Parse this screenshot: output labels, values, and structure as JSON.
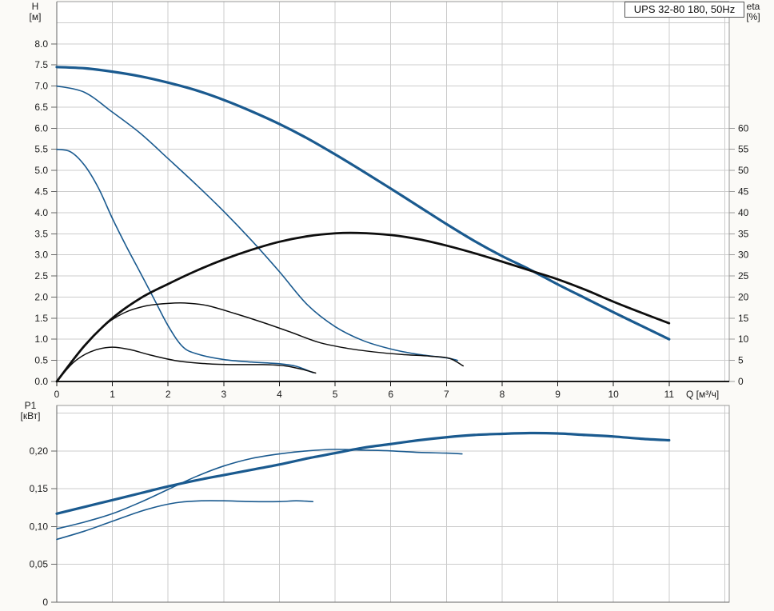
{
  "page": {
    "background": "#fbfaf7",
    "plot_background": "#ffffff"
  },
  "colors": {
    "curve_blue": "#1a5a8f",
    "curve_black": "#0e0e0e",
    "grid": "#cccccc",
    "border": "#999999",
    "axis_left": "#666666",
    "axis_bottom_dark": "#1a1a1a",
    "text": "#1a1a1a"
  },
  "chart_data": [
    {
      "type": "line",
      "title": "UPS 32-80 180, 50Hz",
      "xlabel": "Q [м³/ч]",
      "ylabel_left_lines": [
        "H",
        "[м]"
      ],
      "ylabel_right_lines": [
        "eta",
        "[%]"
      ],
      "x_range": [
        0,
        12.08
      ],
      "y_left_range": [
        0,
        9
      ],
      "y_right_range": [
        0,
        90
      ],
      "x_tick_labels": [
        "0",
        "1",
        "2",
        "3",
        "4",
        "5",
        "6",
        "7",
        "8",
        "9",
        "10",
        "11"
      ],
      "y_left_tick_labels": [
        "0.0",
        "0.5",
        "1.0",
        "1.5",
        "2.0",
        "2.5",
        "3.0",
        "3.5",
        "4.0",
        "4.5",
        "5.0",
        "5.5",
        "6.0",
        "6.5",
        "7.0",
        "7.5",
        "8.0"
      ],
      "y_right_tick_labels": [
        "0",
        "5",
        "10",
        "15",
        "20",
        "25",
        "30",
        "35",
        "40",
        "45",
        "50",
        "55",
        "60"
      ],
      "grid": {
        "x_step": 1,
        "y_left_step": 0.5,
        "y_grid_max": 8.5,
        "x_grid_max": 12
      },
      "legend": "none",
      "series": [
        {
          "name": "H-Q curve speed 3 (max)",
          "y_axis": "left",
          "color": "#1a5a8f",
          "width": 3.2,
          "points": [
            [
              0,
              7.45
            ],
            [
              0.5,
              7.42
            ],
            [
              1,
              7.34
            ],
            [
              1.5,
              7.23
            ],
            [
              2,
              7.08
            ],
            [
              2.5,
              6.9
            ],
            [
              3,
              6.67
            ],
            [
              3.5,
              6.4
            ],
            [
              4,
              6.1
            ],
            [
              4.5,
              5.76
            ],
            [
              5,
              5.38
            ],
            [
              5.5,
              4.98
            ],
            [
              6,
              4.57
            ],
            [
              6.5,
              4.15
            ],
            [
              7,
              3.73
            ],
            [
              7.5,
              3.33
            ],
            [
              8,
              2.97
            ],
            [
              8.5,
              2.65
            ],
            [
              9,
              2.3
            ],
            [
              9.5,
              1.97
            ],
            [
              10,
              1.64
            ],
            [
              10.5,
              1.32
            ],
            [
              11,
              1.0
            ]
          ]
        },
        {
          "name": "H-Q curve speed 2",
          "y_axis": "left",
          "color": "#1a5a8f",
          "width": 1.6,
          "points": [
            [
              0,
              7.0
            ],
            [
              0.5,
              6.85
            ],
            [
              1,
              6.38
            ],
            [
              1.5,
              5.88
            ],
            [
              2,
              5.28
            ],
            [
              2.5,
              4.67
            ],
            [
              3,
              4.03
            ],
            [
              3.5,
              3.34
            ],
            [
              4,
              2.6
            ],
            [
              4.5,
              1.82
            ],
            [
              5,
              1.3
            ],
            [
              5.5,
              0.97
            ],
            [
              6,
              0.77
            ],
            [
              6.5,
              0.64
            ],
            [
              7,
              0.56
            ],
            [
              7.2,
              0.5
            ]
          ]
        },
        {
          "name": "H-Q curve speed 1",
          "y_axis": "left",
          "color": "#1a5a8f",
          "width": 1.6,
          "points": [
            [
              0,
              5.5
            ],
            [
              0.25,
              5.44
            ],
            [
              0.5,
              5.12
            ],
            [
              0.75,
              4.58
            ],
            [
              1,
              3.86
            ],
            [
              1.25,
              3.2
            ],
            [
              1.5,
              2.58
            ],
            [
              1.75,
              1.95
            ],
            [
              2,
              1.32
            ],
            [
              2.25,
              0.84
            ],
            [
              2.5,
              0.66
            ],
            [
              3,
              0.52
            ],
            [
              3.5,
              0.46
            ],
            [
              4,
              0.42
            ],
            [
              4.3,
              0.36
            ],
            [
              4.6,
              0.21
            ]
          ]
        },
        {
          "name": "eta curve speed 3 (max)",
          "y_axis": "right",
          "color": "#0e0e0e",
          "width": 2.8,
          "points": [
            [
              0,
              0
            ],
            [
              0.5,
              8.5
            ],
            [
              1,
              15
            ],
            [
              1.5,
              19.7
            ],
            [
              2,
              23.1
            ],
            [
              2.5,
              26.2
            ],
            [
              3,
              28.9
            ],
            [
              3.5,
              31.2
            ],
            [
              4,
              33.1
            ],
            [
              4.5,
              34.4
            ],
            [
              5,
              35.1
            ],
            [
              5.4,
              35.2
            ],
            [
              6,
              34.7
            ],
            [
              6.5,
              33.7
            ],
            [
              7,
              32.2
            ],
            [
              7.5,
              30.4
            ],
            [
              8,
              28.4
            ],
            [
              8.5,
              26.3
            ],
            [
              9,
              24.2
            ],
            [
              9.5,
              21.7
            ],
            [
              10,
              18.9
            ],
            [
              10.5,
              16.3
            ],
            [
              11,
              13.8
            ]
          ]
        },
        {
          "name": "eta curve speed 2",
          "y_axis": "right",
          "color": "#0e0e0e",
          "width": 1.5,
          "points": [
            [
              0,
              0
            ],
            [
              0.4,
              7
            ],
            [
              0.8,
              12.7
            ],
            [
              1.2,
              16.2
            ],
            [
              1.6,
              17.9
            ],
            [
              2,
              18.5
            ],
            [
              2.3,
              18.6
            ],
            [
              2.7,
              18
            ],
            [
              3.2,
              16.1
            ],
            [
              3.7,
              14
            ],
            [
              4.2,
              11.7
            ],
            [
              4.7,
              9.3
            ],
            [
              5.2,
              7.9
            ],
            [
              5.7,
              7.0
            ],
            [
              6.2,
              6.4
            ],
            [
              6.7,
              6.0
            ],
            [
              7.05,
              5.5
            ],
            [
              7.3,
              3.7
            ]
          ]
        },
        {
          "name": "eta curve speed 1",
          "y_axis": "right",
          "color": "#0e0e0e",
          "width": 1.5,
          "points": [
            [
              0,
              0
            ],
            [
              0.3,
              4.5
            ],
            [
              0.6,
              7.0
            ],
            [
              0.95,
              8.1
            ],
            [
              1.3,
              7.6
            ],
            [
              1.7,
              6.2
            ],
            [
              2.2,
              4.8
            ],
            [
              2.7,
              4.2
            ],
            [
              3.2,
              4.0
            ],
            [
              3.7,
              4.0
            ],
            [
              4.1,
              3.7
            ],
            [
              4.4,
              2.9
            ],
            [
              4.65,
              2.0
            ]
          ]
        }
      ]
    },
    {
      "type": "line",
      "title": "",
      "xlabel": "",
      "ylabel_lines": [
        "P1",
        "[кВт]"
      ],
      "x_range": [
        0,
        12.08
      ],
      "y_range": [
        0,
        0.26
      ],
      "y_tick_labels": [
        "0",
        "0,05",
        "0,10",
        "0,15",
        "0,20"
      ],
      "y_tick_values": [
        0,
        0.05,
        0.1,
        0.15,
        0.2
      ],
      "grid": {
        "x_step": 1,
        "y_step": 0.05,
        "y_grid_max": 0.25,
        "x_grid_max": 12
      },
      "legend": "none",
      "series": [
        {
          "name": "P1 curve speed 3 (max)",
          "color": "#1a5a8f",
          "width": 3.2,
          "points": [
            [
              0,
              0.117
            ],
            [
              0.5,
              0.126
            ],
            [
              1,
              0.135
            ],
            [
              1.5,
              0.144
            ],
            [
              2,
              0.153
            ],
            [
              2.5,
              0.161
            ],
            [
              3,
              0.168
            ],
            [
              3.5,
              0.175
            ],
            [
              4,
              0.182
            ],
            [
              4.5,
              0.19
            ],
            [
              5,
              0.197
            ],
            [
              5.5,
              0.204
            ],
            [
              6,
              0.209
            ],
            [
              6.5,
              0.214
            ],
            [
              7,
              0.218
            ],
            [
              7.5,
              0.221
            ],
            [
              8,
              0.2225
            ],
            [
              8.5,
              0.2235
            ],
            [
              9,
              0.223
            ],
            [
              9.5,
              0.221
            ],
            [
              10,
              0.219
            ],
            [
              10.5,
              0.216
            ],
            [
              11,
              0.214
            ]
          ]
        },
        {
          "name": "P1 curve speed 2",
          "color": "#1a5a8f",
          "width": 1.6,
          "points": [
            [
              0,
              0.097
            ],
            [
              0.5,
              0.106
            ],
            [
              1,
              0.117
            ],
            [
              1.5,
              0.132
            ],
            [
              2,
              0.149
            ],
            [
              2.5,
              0.166
            ],
            [
              3,
              0.18
            ],
            [
              3.5,
              0.19
            ],
            [
              4,
              0.196
            ],
            [
              4.5,
              0.2
            ],
            [
              5,
              0.202
            ],
            [
              5.5,
              0.201
            ],
            [
              6,
              0.2
            ],
            [
              6.5,
              0.198
            ],
            [
              7,
              0.197
            ],
            [
              7.28,
              0.196
            ]
          ]
        },
        {
          "name": "P1 curve speed 1",
          "color": "#1a5a8f",
          "width": 1.6,
          "points": [
            [
              0,
              0.083
            ],
            [
              0.5,
              0.094
            ],
            [
              1,
              0.107
            ],
            [
              1.5,
              0.12
            ],
            [
              1.9,
              0.128
            ],
            [
              2.2,
              0.132
            ],
            [
              2.6,
              0.134
            ],
            [
              3,
              0.134
            ],
            [
              3.5,
              0.133
            ],
            [
              4,
              0.133
            ],
            [
              4.3,
              0.134
            ],
            [
              4.6,
              0.133
            ]
          ]
        }
      ]
    }
  ]
}
